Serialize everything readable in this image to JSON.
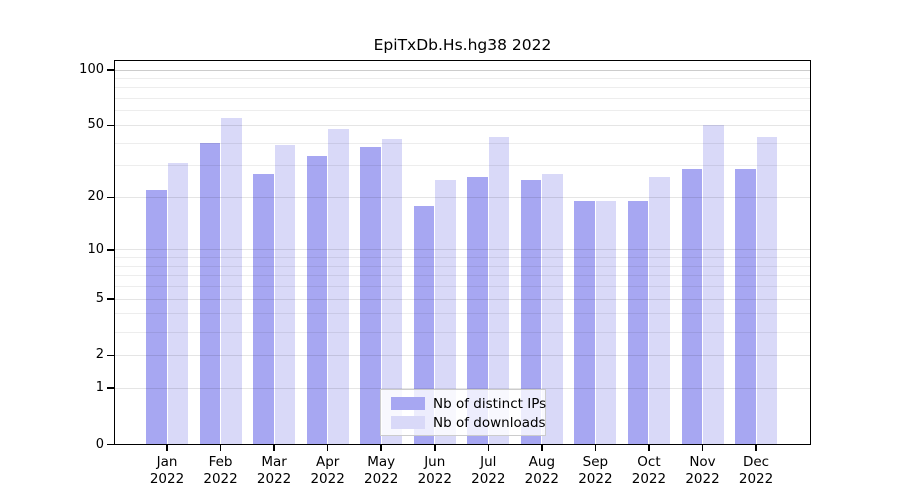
{
  "figure": {
    "title": "EpiTxDb.Hs.hg38 2022"
  },
  "colors": {
    "ips": "#a7a7f2",
    "downloads": "#d9d9f8",
    "axis": "#000000",
    "grid_minor": "rgba(0,0,0,0.07)",
    "grid_major": "rgba(0,0,0,0.10)",
    "grid_top": "rgba(0,0,0,0.20)",
    "legend_bg": "rgba(255,255,255,0.8)",
    "legend_border": "#cccccc"
  },
  "legend": {
    "items": [
      {
        "label": "Nb of distinct IPs",
        "series_key": "ips"
      },
      {
        "label": "Nb of downloads",
        "series_key": "downloads"
      }
    ]
  },
  "chart_data": {
    "type": "bar",
    "title": "EpiTxDb.Hs.hg38 2022",
    "x_categories": [
      "Jan 2022",
      "Feb 2022",
      "Mar 2022",
      "Apr 2022",
      "May 2022",
      "Jun 2022",
      "Jul 2022",
      "Aug 2022",
      "Sep 2022",
      "Oct 2022",
      "Nov 2022",
      "Dec 2022"
    ],
    "series": [
      {
        "key": "ips",
        "name": "Nb of distinct IPs",
        "values": [
          22,
          40,
          27,
          34,
          38,
          18,
          26,
          25,
          19,
          19,
          29,
          29
        ]
      },
      {
        "key": "downloads",
        "name": "Nb of downloads",
        "values": [
          31,
          55,
          39,
          48,
          42,
          25,
          43,
          27,
          19,
          26,
          50,
          43
        ]
      }
    ],
    "y_scale": "log1p",
    "ylim": [
      0,
      100
    ],
    "y_ticks": [
      0,
      1,
      2,
      5,
      10,
      20,
      50,
      100
    ],
    "y_gridlines": [
      1,
      2,
      3,
      4,
      5,
      6,
      7,
      8,
      9,
      10,
      20,
      30,
      40,
      50,
      60,
      70,
      80,
      90,
      100
    ],
    "grid": true,
    "legend_position": "inside-bottom-center"
  }
}
